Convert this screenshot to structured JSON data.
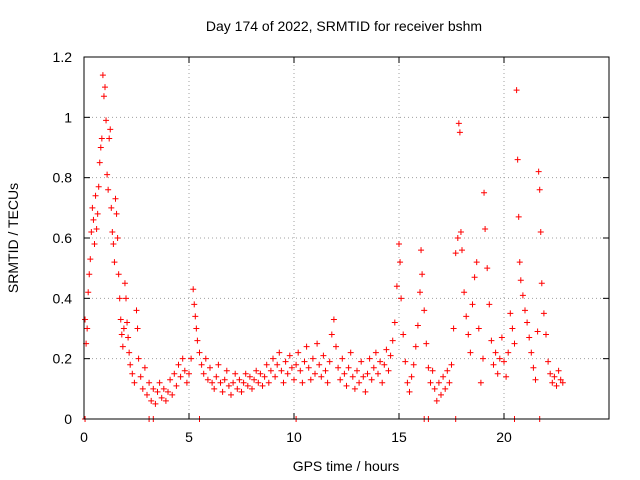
{
  "chart_data": {
    "type": "scatter",
    "title": "Day 174 of 2022, SRMTID for receiver bshm",
    "xlabel": "GPS time / hours",
    "ylabel": "SRMTID / TECUs",
    "xlim": [
      0,
      25
    ],
    "ylim": [
      0,
      1.2
    ],
    "x_ticks": [
      0,
      5,
      10,
      15,
      20
    ],
    "x_tick_labels": [
      "0",
      "5",
      "10",
      "15",
      "20"
    ],
    "y_ticks": [
      0,
      0.2,
      0.4,
      0.6,
      0.8,
      1.0,
      1.2
    ],
    "y_tick_labels": [
      "0",
      "0.2",
      "0.4",
      "0.6",
      "0.8",
      "1",
      "1.2"
    ],
    "grid": true,
    "marker": "+",
    "colors": {
      "series": "#ff0000",
      "grid": "#a0a0a0",
      "axes": "#000000"
    },
    "series": [
      {
        "name": "SRMTID",
        "points": [
          [
            0.05,
            0.33
          ],
          [
            0.1,
            0.25
          ],
          [
            0.15,
            0.3
          ],
          [
            0.2,
            0.42
          ],
          [
            0.25,
            0.48
          ],
          [
            0.3,
            0.53
          ],
          [
            0.35,
            0.62
          ],
          [
            0.4,
            0.7
          ],
          [
            0.45,
            0.66
          ],
          [
            0.5,
            0.58
          ],
          [
            0.55,
            0.74
          ],
          [
            0.6,
            0.63
          ],
          [
            0.65,
            0.68
          ],
          [
            0.7,
            0.77
          ],
          [
            0.75,
            0.85
          ],
          [
            0.8,
            0.9
          ],
          [
            0.85,
            0.93
          ],
          [
            0.9,
            1.14
          ],
          [
            0.95,
            1.07
          ],
          [
            1.0,
            1.1
          ],
          [
            1.05,
            0.99
          ],
          [
            1.1,
            0.81
          ],
          [
            1.15,
            0.76
          ],
          [
            1.2,
            0.93
          ],
          [
            1.25,
            0.96
          ],
          [
            1.3,
            0.7
          ],
          [
            1.35,
            0.62
          ],
          [
            1.4,
            0.58
          ],
          [
            1.45,
            0.52
          ],
          [
            1.5,
            0.73
          ],
          [
            1.55,
            0.68
          ],
          [
            1.6,
            0.6
          ],
          [
            1.65,
            0.48
          ],
          [
            1.7,
            0.4
          ],
          [
            1.75,
            0.33
          ],
          [
            1.8,
            0.28
          ],
          [
            1.85,
            0.24
          ],
          [
            1.9,
            0.3
          ],
          [
            1.95,
            0.45
          ],
          [
            2.0,
            0.4
          ],
          [
            2.05,
            0.32
          ],
          [
            2.1,
            0.27
          ],
          [
            2.15,
            0.22
          ],
          [
            2.2,
            0.18
          ],
          [
            2.3,
            0.15
          ],
          [
            2.4,
            0.12
          ],
          [
            2.5,
            0.36
          ],
          [
            2.55,
            0.3
          ],
          [
            2.6,
            0.2
          ],
          [
            2.7,
            0.14
          ],
          [
            2.8,
            0.1
          ],
          [
            2.9,
            0.17
          ],
          [
            3.0,
            0.08
          ],
          [
            3.1,
            0.12
          ],
          [
            3.2,
            0.06
          ],
          [
            3.3,
            0.1
          ],
          [
            3.4,
            0.05
          ],
          [
            3.5,
            0.09
          ],
          [
            3.6,
            0.12
          ],
          [
            3.7,
            0.07
          ],
          [
            3.8,
            0.1
          ],
          [
            3.9,
            0.06
          ],
          [
            4.0,
            0.09
          ],
          [
            4.1,
            0.13
          ],
          [
            4.2,
            0.08
          ],
          [
            4.3,
            0.15
          ],
          [
            4.4,
            0.11
          ],
          [
            4.5,
            0.18
          ],
          [
            4.6,
            0.14
          ],
          [
            4.7,
            0.2
          ],
          [
            4.8,
            0.16
          ],
          [
            4.9,
            0.12
          ],
          [
            5.0,
            0.15
          ],
          [
            5.1,
            0.2
          ],
          [
            5.2,
            0.43
          ],
          [
            5.25,
            0.38
          ],
          [
            5.3,
            0.34
          ],
          [
            5.35,
            0.3
          ],
          [
            5.4,
            0.26
          ],
          [
            5.5,
            0.22
          ],
          [
            5.6,
            0.18
          ],
          [
            5.7,
            0.15
          ],
          [
            5.8,
            0.2
          ],
          [
            5.9,
            0.13
          ],
          [
            6.0,
            0.17
          ],
          [
            6.1,
            0.12
          ],
          [
            6.2,
            0.1
          ],
          [
            6.3,
            0.14
          ],
          [
            6.4,
            0.18
          ],
          [
            6.5,
            0.12
          ],
          [
            6.6,
            0.09
          ],
          [
            6.7,
            0.13
          ],
          [
            6.8,
            0.16
          ],
          [
            6.9,
            0.11
          ],
          [
            7.0,
            0.08
          ],
          [
            7.1,
            0.12
          ],
          [
            7.2,
            0.15
          ],
          [
            7.3,
            0.1
          ],
          [
            7.4,
            0.13
          ],
          [
            7.5,
            0.09
          ],
          [
            7.6,
            0.12
          ],
          [
            7.7,
            0.15
          ],
          [
            7.8,
            0.11
          ],
          [
            7.9,
            0.14
          ],
          [
            8.0,
            0.1
          ],
          [
            8.1,
            0.13
          ],
          [
            8.2,
            0.16
          ],
          [
            8.3,
            0.12
          ],
          [
            8.4,
            0.15
          ],
          [
            8.5,
            0.11
          ],
          [
            8.6,
            0.14
          ],
          [
            8.7,
            0.18
          ],
          [
            8.8,
            0.12
          ],
          [
            8.9,
            0.16
          ],
          [
            9.0,
            0.2
          ],
          [
            9.1,
            0.14
          ],
          [
            9.2,
            0.18
          ],
          [
            9.3,
            0.22
          ],
          [
            9.4,
            0.16
          ],
          [
            9.5,
            0.12
          ],
          [
            9.6,
            0.19
          ],
          [
            9.7,
            0.15
          ],
          [
            9.8,
            0.21
          ],
          [
            9.9,
            0.17
          ],
          [
            10.0,
            0.13
          ],
          [
            10.1,
            0.18
          ],
          [
            10.2,
            0.22
          ],
          [
            10.3,
            0.16
          ],
          [
            10.4,
            0.12
          ],
          [
            10.5,
            0.19
          ],
          [
            10.6,
            0.24
          ],
          [
            10.7,
            0.17
          ],
          [
            10.8,
            0.13
          ],
          [
            10.9,
            0.2
          ],
          [
            11.0,
            0.15
          ],
          [
            11.1,
            0.25
          ],
          [
            11.2,
            0.18
          ],
          [
            11.3,
            0.14
          ],
          [
            11.4,
            0.21
          ],
          [
            11.5,
            0.16
          ],
          [
            11.6,
            0.12
          ],
          [
            11.7,
            0.19
          ],
          [
            11.8,
            0.28
          ],
          [
            11.9,
            0.33
          ],
          [
            12.0,
            0.24
          ],
          [
            12.1,
            0.17
          ],
          [
            12.2,
            0.13
          ],
          [
            12.3,
            0.2
          ],
          [
            12.4,
            0.15
          ],
          [
            12.5,
            0.11
          ],
          [
            12.6,
            0.17
          ],
          [
            12.7,
            0.22
          ],
          [
            12.8,
            0.14
          ],
          [
            12.9,
            0.1
          ],
          [
            13.0,
            0.16
          ],
          [
            13.1,
            0.12
          ],
          [
            13.2,
            0.19
          ],
          [
            13.3,
            0.14
          ],
          [
            13.4,
            0.09
          ],
          [
            13.5,
            0.15
          ],
          [
            13.6,
            0.2
          ],
          [
            13.7,
            0.13
          ],
          [
            13.8,
            0.17
          ],
          [
            13.9,
            0.22
          ],
          [
            14.0,
            0.15
          ],
          [
            14.1,
            0.19
          ],
          [
            14.2,
            0.12
          ],
          [
            14.3,
            0.18
          ],
          [
            14.4,
            0.23
          ],
          [
            14.5,
            0.16
          ],
          [
            14.6,
            0.21
          ],
          [
            14.7,
            0.26
          ],
          [
            14.8,
            0.32
          ],
          [
            14.9,
            0.44
          ],
          [
            15.0,
            0.58
          ],
          [
            15.05,
            0.52
          ],
          [
            15.1,
            0.4
          ],
          [
            15.2,
            0.28
          ],
          [
            15.3,
            0.19
          ],
          [
            15.4,
            0.12
          ],
          [
            15.5,
            0.09
          ],
          [
            15.6,
            0.14
          ],
          [
            15.7,
            0.18
          ],
          [
            15.8,
            0.24
          ],
          [
            15.9,
            0.31
          ],
          [
            16.0,
            0.42
          ],
          [
            16.05,
            0.56
          ],
          [
            16.1,
            0.48
          ],
          [
            16.2,
            0.36
          ],
          [
            16.3,
            0.25
          ],
          [
            16.4,
            0.17
          ],
          [
            16.5,
            0.12
          ],
          [
            16.6,
            0.16
          ],
          [
            16.7,
            0.1
          ],
          [
            16.8,
            0.06
          ],
          [
            16.9,
            0.12
          ],
          [
            17.0,
            0.08
          ],
          [
            17.1,
            0.14
          ],
          [
            17.2,
            0.1
          ],
          [
            17.3,
            0.16
          ],
          [
            17.4,
            0.12
          ],
          [
            17.5,
            0.18
          ],
          [
            17.6,
            0.3
          ],
          [
            17.7,
            0.55
          ],
          [
            17.8,
            0.6
          ],
          [
            17.85,
            0.98
          ],
          [
            17.9,
            0.95
          ],
          [
            17.95,
            0.62
          ],
          [
            18.0,
            0.56
          ],
          [
            18.1,
            0.42
          ],
          [
            18.2,
            0.34
          ],
          [
            18.3,
            0.28
          ],
          [
            18.4,
            0.22
          ],
          [
            18.5,
            0.38
          ],
          [
            18.6,
            0.47
          ],
          [
            18.7,
            0.52
          ],
          [
            18.8,
            0.3
          ],
          [
            18.9,
            0.12
          ],
          [
            19.0,
            0.2
          ],
          [
            19.05,
            0.75
          ],
          [
            19.1,
            0.63
          ],
          [
            19.2,
            0.5
          ],
          [
            19.3,
            0.38
          ],
          [
            19.4,
            0.26
          ],
          [
            19.5,
            0.18
          ],
          [
            19.6,
            0.22
          ],
          [
            19.7,
            0.15
          ],
          [
            19.8,
            0.2
          ],
          [
            19.9,
            0.27
          ],
          [
            20.0,
            0.19
          ],
          [
            20.1,
            0.14
          ],
          [
            20.2,
            0.22
          ],
          [
            20.3,
            0.35
          ],
          [
            20.4,
            0.3
          ],
          [
            20.5,
            0.25
          ],
          [
            20.6,
            1.09
          ],
          [
            20.65,
            0.86
          ],
          [
            20.7,
            0.67
          ],
          [
            20.75,
            0.52
          ],
          [
            20.8,
            0.46
          ],
          [
            20.9,
            0.41
          ],
          [
            21.0,
            0.36
          ],
          [
            21.1,
            0.32
          ],
          [
            21.2,
            0.27
          ],
          [
            21.3,
            0.22
          ],
          [
            21.4,
            0.17
          ],
          [
            21.5,
            0.13
          ],
          [
            21.6,
            0.29
          ],
          [
            21.65,
            0.82
          ],
          [
            21.7,
            0.76
          ],
          [
            21.75,
            0.62
          ],
          [
            21.8,
            0.45
          ],
          [
            21.9,
            0.35
          ],
          [
            22.0,
            0.28
          ],
          [
            22.1,
            0.19
          ],
          [
            22.2,
            0.15
          ],
          [
            22.3,
            0.12
          ],
          [
            22.4,
            0.14
          ],
          [
            22.5,
            0.11
          ],
          [
            22.6,
            0.16
          ],
          [
            22.7,
            0.13
          ],
          [
            22.8,
            0.12
          ],
          [
            0.05,
            0.0
          ],
          [
            3.1,
            0.0
          ],
          [
            3.3,
            0.0
          ],
          [
            5.5,
            0.0
          ],
          [
            10.1,
            0.0
          ],
          [
            16.2,
            0.0
          ],
          [
            16.4,
            0.0
          ],
          [
            17.7,
            0.0
          ],
          [
            20.5,
            0.0
          ],
          [
            21.7,
            0.0
          ]
        ]
      }
    ]
  }
}
